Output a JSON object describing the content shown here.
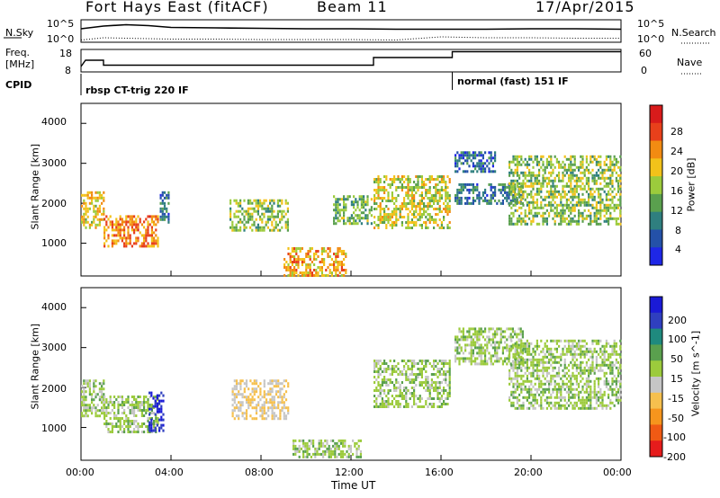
{
  "header": {
    "station": "Fort Hays East (fitACF)",
    "beam": "Beam 11",
    "date": "17/Apr/2015"
  },
  "panels": {
    "nsky": {
      "label": "N.Sky",
      "left_ticks": [
        "10^5",
        "10^0"
      ],
      "right_ticks": [
        "10^5",
        "10^0"
      ],
      "right_label": "N.Search"
    },
    "freq": {
      "label": "Freq.",
      "unit": "[MHz]",
      "left_ticks": [
        "18",
        "8"
      ],
      "right_ticks": [
        "60",
        "0"
      ],
      "right_label": "Nave"
    },
    "cpid": {
      "label": "CPID",
      "programs": [
        "rbsp CT-trig 220 IF",
        "normal (fast) 151 IF"
      ]
    },
    "power": {
      "ylabel": "Slant Range [km]",
      "yticks": [
        "4000",
        "3000",
        "2000",
        "1000"
      ],
      "colorbar_label": "Power [dB]",
      "colorbar_ticks": [
        "28",
        "24",
        "20",
        "16",
        "12",
        "8",
        "4"
      ]
    },
    "velocity": {
      "ylabel": "Slant Range [km]",
      "yticks": [
        "4000",
        "3000",
        "2000",
        "1000"
      ],
      "colorbar_label": "Velocity [m s^-1]",
      "colorbar_ticks": [
        "200",
        "100",
        "50",
        "15",
        "-15",
        "-50",
        "-100",
        "-200"
      ]
    }
  },
  "xaxis": {
    "label": "Time UT",
    "ticks": [
      "00:00",
      "04:00",
      "08:00",
      "12:00",
      "16:00",
      "20:00",
      "00:00"
    ]
  },
  "chart_data": [
    {
      "type": "line",
      "title": "N.Sky / N.Search",
      "x": [
        0,
        1,
        2,
        3,
        4,
        6,
        8,
        10,
        12,
        14,
        16,
        18,
        20,
        22,
        24
      ],
      "series": [
        {
          "name": "N.Sky",
          "values": [
            3.0,
            3.6,
            3.9,
            3.7,
            3.3,
            3.2,
            3.1,
            3.0,
            3.0,
            2.9,
            2.9,
            2.9,
            3.0,
            3.0,
            2.9
          ]
        },
        {
          "name": "N.Search",
          "values": [
            0.5,
            1.0,
            0.9,
            0.8,
            0.7,
            0.7,
            0.6,
            0.6,
            0.6,
            0.5,
            1.2,
            1.0,
            1.0,
            0.9,
            0.9
          ]
        }
      ],
      "ylim": [
        0,
        5
      ]
    },
    {
      "type": "line",
      "title": "Freq. / Nave",
      "x": [
        0,
        0.2,
        1.0,
        1.0,
        13.0,
        13.0,
        16.5,
        16.5,
        24
      ],
      "series": [
        {
          "name": "Freq.",
          "values": [
            10.4,
            13.2,
            13.2,
            11.0,
            11.0,
            14.4,
            14.4,
            17.0,
            17.0
          ]
        },
        {
          "name": "Nave",
          "values": [
            8,
            8,
            8,
            8,
            8,
            8,
            8,
            8,
            8
          ]
        }
      ],
      "ylim": [
        8,
        18
      ]
    },
    {
      "type": "heatmap",
      "title": "Power [dB]",
      "xlabel": "Time UT",
      "ylabel": "Slant Range [km]",
      "xlim": [
        0,
        24
      ],
      "ylim": [
        180,
        4500
      ],
      "zlim": [
        0,
        30
      ],
      "regions": [
        {
          "t": [
            0.0,
            1.0
          ],
          "r": [
            1400,
            2300
          ],
          "power": 18
        },
        {
          "t": [
            1.0,
            3.4
          ],
          "r": [
            900,
            1700
          ],
          "power": 22
        },
        {
          "t": [
            3.5,
            3.9
          ],
          "r": [
            1500,
            2300
          ],
          "power": 8
        },
        {
          "t": [
            6.6,
            9.2
          ],
          "r": [
            1300,
            2100
          ],
          "power": 14
        },
        {
          "t": [
            9.0,
            11.8
          ],
          "r": [
            200,
            900
          ],
          "power": 20
        },
        {
          "t": [
            11.2,
            12.9
          ],
          "r": [
            1500,
            2200
          ],
          "power": 12
        },
        {
          "t": [
            13.0,
            16.4
          ],
          "r": [
            1400,
            2700
          ],
          "power": 16
        },
        {
          "t": [
            16.6,
            18.4
          ],
          "r": [
            2800,
            3300
          ],
          "power": 6
        },
        {
          "t": [
            16.6,
            19.6
          ],
          "r": [
            2000,
            2500
          ],
          "power": 8
        },
        {
          "t": [
            19.0,
            24.0
          ],
          "r": [
            1500,
            3200
          ],
          "power": 14
        }
      ]
    },
    {
      "type": "heatmap",
      "title": "Velocity [m s^-1]",
      "xlabel": "Time UT",
      "ylabel": "Slant Range [km]",
      "xlim": [
        0,
        24
      ],
      "ylim": [
        180,
        4500
      ],
      "zlim": [
        -200,
        200
      ],
      "regions": [
        {
          "t": [
            0.0,
            1.0
          ],
          "r": [
            1300,
            2200
          ],
          "velocity": 0
        },
        {
          "t": [
            1.0,
            3.4
          ],
          "r": [
            900,
            1800
          ],
          "velocity": 0
        },
        {
          "t": [
            3.0,
            3.7
          ],
          "r": [
            900,
            1900
          ],
          "velocity": 200
        },
        {
          "t": [
            6.7,
            9.2
          ],
          "r": [
            1200,
            2200
          ],
          "velocity": -50
        },
        {
          "t": [
            9.4,
            12.4
          ],
          "r": [
            250,
            700
          ],
          "velocity": 0
        },
        {
          "t": [
            13.0,
            16.4
          ],
          "r": [
            1500,
            2700
          ],
          "velocity": 0
        },
        {
          "t": [
            16.6,
            19.6
          ],
          "r": [
            2600,
            3500
          ],
          "velocity": 0
        },
        {
          "t": [
            19.0,
            24.0
          ],
          "r": [
            1500,
            3200
          ],
          "velocity": 0
        }
      ]
    }
  ]
}
